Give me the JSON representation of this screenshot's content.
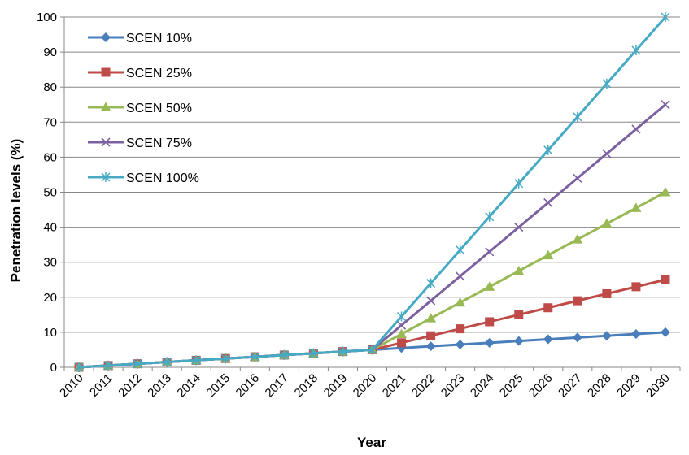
{
  "chart_data": {
    "type": "line",
    "title": "",
    "xlabel": "Year",
    "ylabel": "Penetration levels (%)",
    "ylim": [
      0,
      100
    ],
    "yticks": [
      0,
      10,
      20,
      30,
      40,
      50,
      60,
      70,
      80,
      90,
      100
    ],
    "grid": "horizontal",
    "legend_position": "top-left",
    "categories": [
      "2010",
      "2011",
      "2012",
      "2013",
      "2014",
      "2015",
      "2016",
      "2017",
      "2018",
      "2019",
      "2020",
      "2021",
      "2022",
      "2023",
      "2024",
      "2025",
      "2026",
      "2027",
      "2028",
      "2029",
      "2030"
    ],
    "series": [
      {
        "name": "SCEN 10%",
        "color": "#4A7EBB",
        "marker": "diamond",
        "values": [
          0,
          0.5,
          1,
          1.5,
          2,
          2.5,
          3,
          3.5,
          4,
          4.5,
          5,
          5.5,
          6,
          6.5,
          7,
          7.5,
          8,
          8.5,
          9,
          9.5,
          10
        ]
      },
      {
        "name": "SCEN 25%",
        "color": "#BE4B48",
        "marker": "square",
        "values": [
          0,
          0.5,
          1,
          1.5,
          2,
          2.5,
          3,
          3.5,
          4,
          4.5,
          5,
          7,
          9,
          11,
          13,
          15,
          17,
          19,
          21,
          23,
          25
        ]
      },
      {
        "name": "SCEN 50%",
        "color": "#98B954",
        "marker": "triangle",
        "values": [
          0,
          0.5,
          1,
          1.5,
          2,
          2.5,
          3,
          3.5,
          4,
          4.5,
          5,
          9.5,
          14,
          18.5,
          23,
          27.5,
          32,
          36.5,
          41,
          45.5,
          50
        ]
      },
      {
        "name": "SCEN 75%",
        "color": "#7D60A0",
        "marker": "x",
        "values": [
          0,
          0.5,
          1,
          1.5,
          2,
          2.5,
          3,
          3.5,
          4,
          4.5,
          5,
          12,
          19,
          26,
          33,
          40,
          47,
          54,
          61,
          68,
          75
        ]
      },
      {
        "name": "SCEN 100%",
        "color": "#46AAC5",
        "marker": "asterisk",
        "values": [
          0,
          0.5,
          1,
          1.5,
          2,
          2.5,
          3,
          3.5,
          4,
          4.5,
          5,
          14.5,
          24,
          33.5,
          43,
          52.5,
          62,
          71.5,
          81,
          90.5,
          100
        ]
      }
    ]
  }
}
